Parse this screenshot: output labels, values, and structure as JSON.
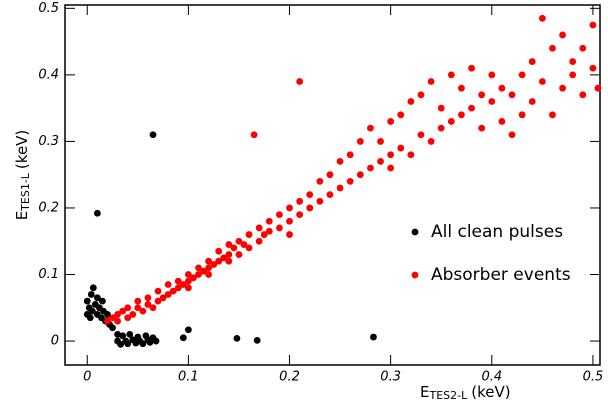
{
  "chart_data": {
    "type": "scatter",
    "xlabel": {
      "main": "E",
      "sub": "TES2-L",
      "unit": "(keV)"
    },
    "ylabel": {
      "main": "E",
      "sub": "TES1-L",
      "unit": "(keV)"
    },
    "xlim": [
      -0.022,
      0.507
    ],
    "ylim": [
      -0.036,
      0.505
    ],
    "xticks": [
      0,
      0.1,
      0.2,
      0.3,
      0.4,
      0.5
    ],
    "yticks": [
      0,
      0.1,
      0.2,
      0.3,
      0.4,
      0.5
    ],
    "legend": "right",
    "series": [
      {
        "name": "All clean pulses",
        "color": "#000000",
        "x": [
          0.0,
          0.0,
          0.002,
          0.004,
          0.005,
          0.006,
          0.008,
          0.01,
          0.01,
          0.012,
          0.014,
          0.015,
          0.016,
          0.018,
          0.02,
          0.003,
          0.022,
          0.025,
          0.03,
          0.03,
          0.033,
          0.035,
          0.038,
          0.04,
          0.042,
          0.045,
          0.048,
          0.05,
          0.052,
          0.055,
          0.058,
          0.06,
          0.062,
          0.065,
          0.068,
          0.065,
          0.01,
          0.1,
          0.095,
          0.148,
          0.168,
          0.283
        ],
        "y": [
          0.04,
          0.06,
          0.05,
          0.07,
          0.045,
          0.08,
          0.055,
          0.04,
          0.065,
          0.05,
          0.035,
          0.06,
          0.045,
          0.03,
          0.04,
          0.035,
          0.025,
          0.02,
          0.01,
          0.0,
          -0.005,
          0.008,
          0.0,
          -0.004,
          0.01,
          0.002,
          -0.003,
          0.006,
          0.0,
          -0.004,
          0.008,
          0.002,
          -0.002,
          0.005,
          0.0,
          0.31,
          0.192,
          0.017,
          0.005,
          0.004,
          0.001,
          0.006
        ]
      },
      {
        "name": "Absorber events",
        "color": "#ff0000",
        "x": [
          0.02,
          0.025,
          0.03,
          0.03,
          0.035,
          0.04,
          0.04,
          0.045,
          0.05,
          0.05,
          0.055,
          0.06,
          0.06,
          0.065,
          0.07,
          0.07,
          0.075,
          0.08,
          0.08,
          0.085,
          0.09,
          0.09,
          0.095,
          0.1,
          0.1,
          0.105,
          0.11,
          0.11,
          0.115,
          0.12,
          0.12,
          0.125,
          0.13,
          0.13,
          0.135,
          0.14,
          0.14,
          0.145,
          0.15,
          0.15,
          0.155,
          0.16,
          0.16,
          0.165,
          0.17,
          0.17,
          0.175,
          0.18,
          0.18,
          0.19,
          0.19,
          0.2,
          0.2,
          0.21,
          0.21,
          0.21,
          0.22,
          0.22,
          0.23,
          0.23,
          0.24,
          0.24,
          0.25,
          0.25,
          0.26,
          0.26,
          0.27,
          0.27,
          0.28,
          0.28,
          0.29,
          0.29,
          0.3,
          0.3,
          0.31,
          0.31,
          0.32,
          0.32,
          0.33,
          0.33,
          0.34,
          0.34,
          0.35,
          0.35,
          0.36,
          0.36,
          0.37,
          0.37,
          0.38,
          0.38,
          0.39,
          0.39,
          0.4,
          0.4,
          0.41,
          0.41,
          0.42,
          0.42,
          0.43,
          0.43,
          0.44,
          0.44,
          0.45,
          0.45,
          0.46,
          0.46,
          0.47,
          0.47,
          0.48,
          0.48,
          0.49,
          0.49,
          0.5,
          0.5,
          0.505,
          0.3,
          0.2,
          0.1,
          0.12,
          0.14
        ],
        "y": [
          0.03,
          0.035,
          0.03,
          0.04,
          0.045,
          0.035,
          0.05,
          0.04,
          0.05,
          0.06,
          0.045,
          0.055,
          0.065,
          0.05,
          0.06,
          0.075,
          0.065,
          0.07,
          0.085,
          0.075,
          0.08,
          0.09,
          0.085,
          0.09,
          0.1,
          0.095,
          0.1,
          0.11,
          0.105,
          0.11,
          0.12,
          0.115,
          0.12,
          0.135,
          0.125,
          0.13,
          0.145,
          0.14,
          0.13,
          0.15,
          0.145,
          0.14,
          0.16,
          0.31,
          0.15,
          0.17,
          0.16,
          0.165,
          0.18,
          0.17,
          0.19,
          0.18,
          0.2,
          0.39,
          0.19,
          0.21,
          0.2,
          0.22,
          0.21,
          0.24,
          0.22,
          0.25,
          0.23,
          0.27,
          0.24,
          0.28,
          0.25,
          0.3,
          0.26,
          0.32,
          0.27,
          0.3,
          0.28,
          0.33,
          0.29,
          0.34,
          0.28,
          0.36,
          0.31,
          0.37,
          0.3,
          0.39,
          0.32,
          0.35,
          0.33,
          0.4,
          0.34,
          0.38,
          0.35,
          0.41,
          0.32,
          0.37,
          0.36,
          0.4,
          0.33,
          0.38,
          0.31,
          0.37,
          0.34,
          0.4,
          0.42,
          0.36,
          0.485,
          0.39,
          0.34,
          0.44,
          0.38,
          0.46,
          0.4,
          0.42,
          0.44,
          0.37,
          0.475,
          0.41,
          0.38,
          0.26,
          0.16,
          0.08,
          0.1,
          0.12
        ]
      }
    ]
  }
}
